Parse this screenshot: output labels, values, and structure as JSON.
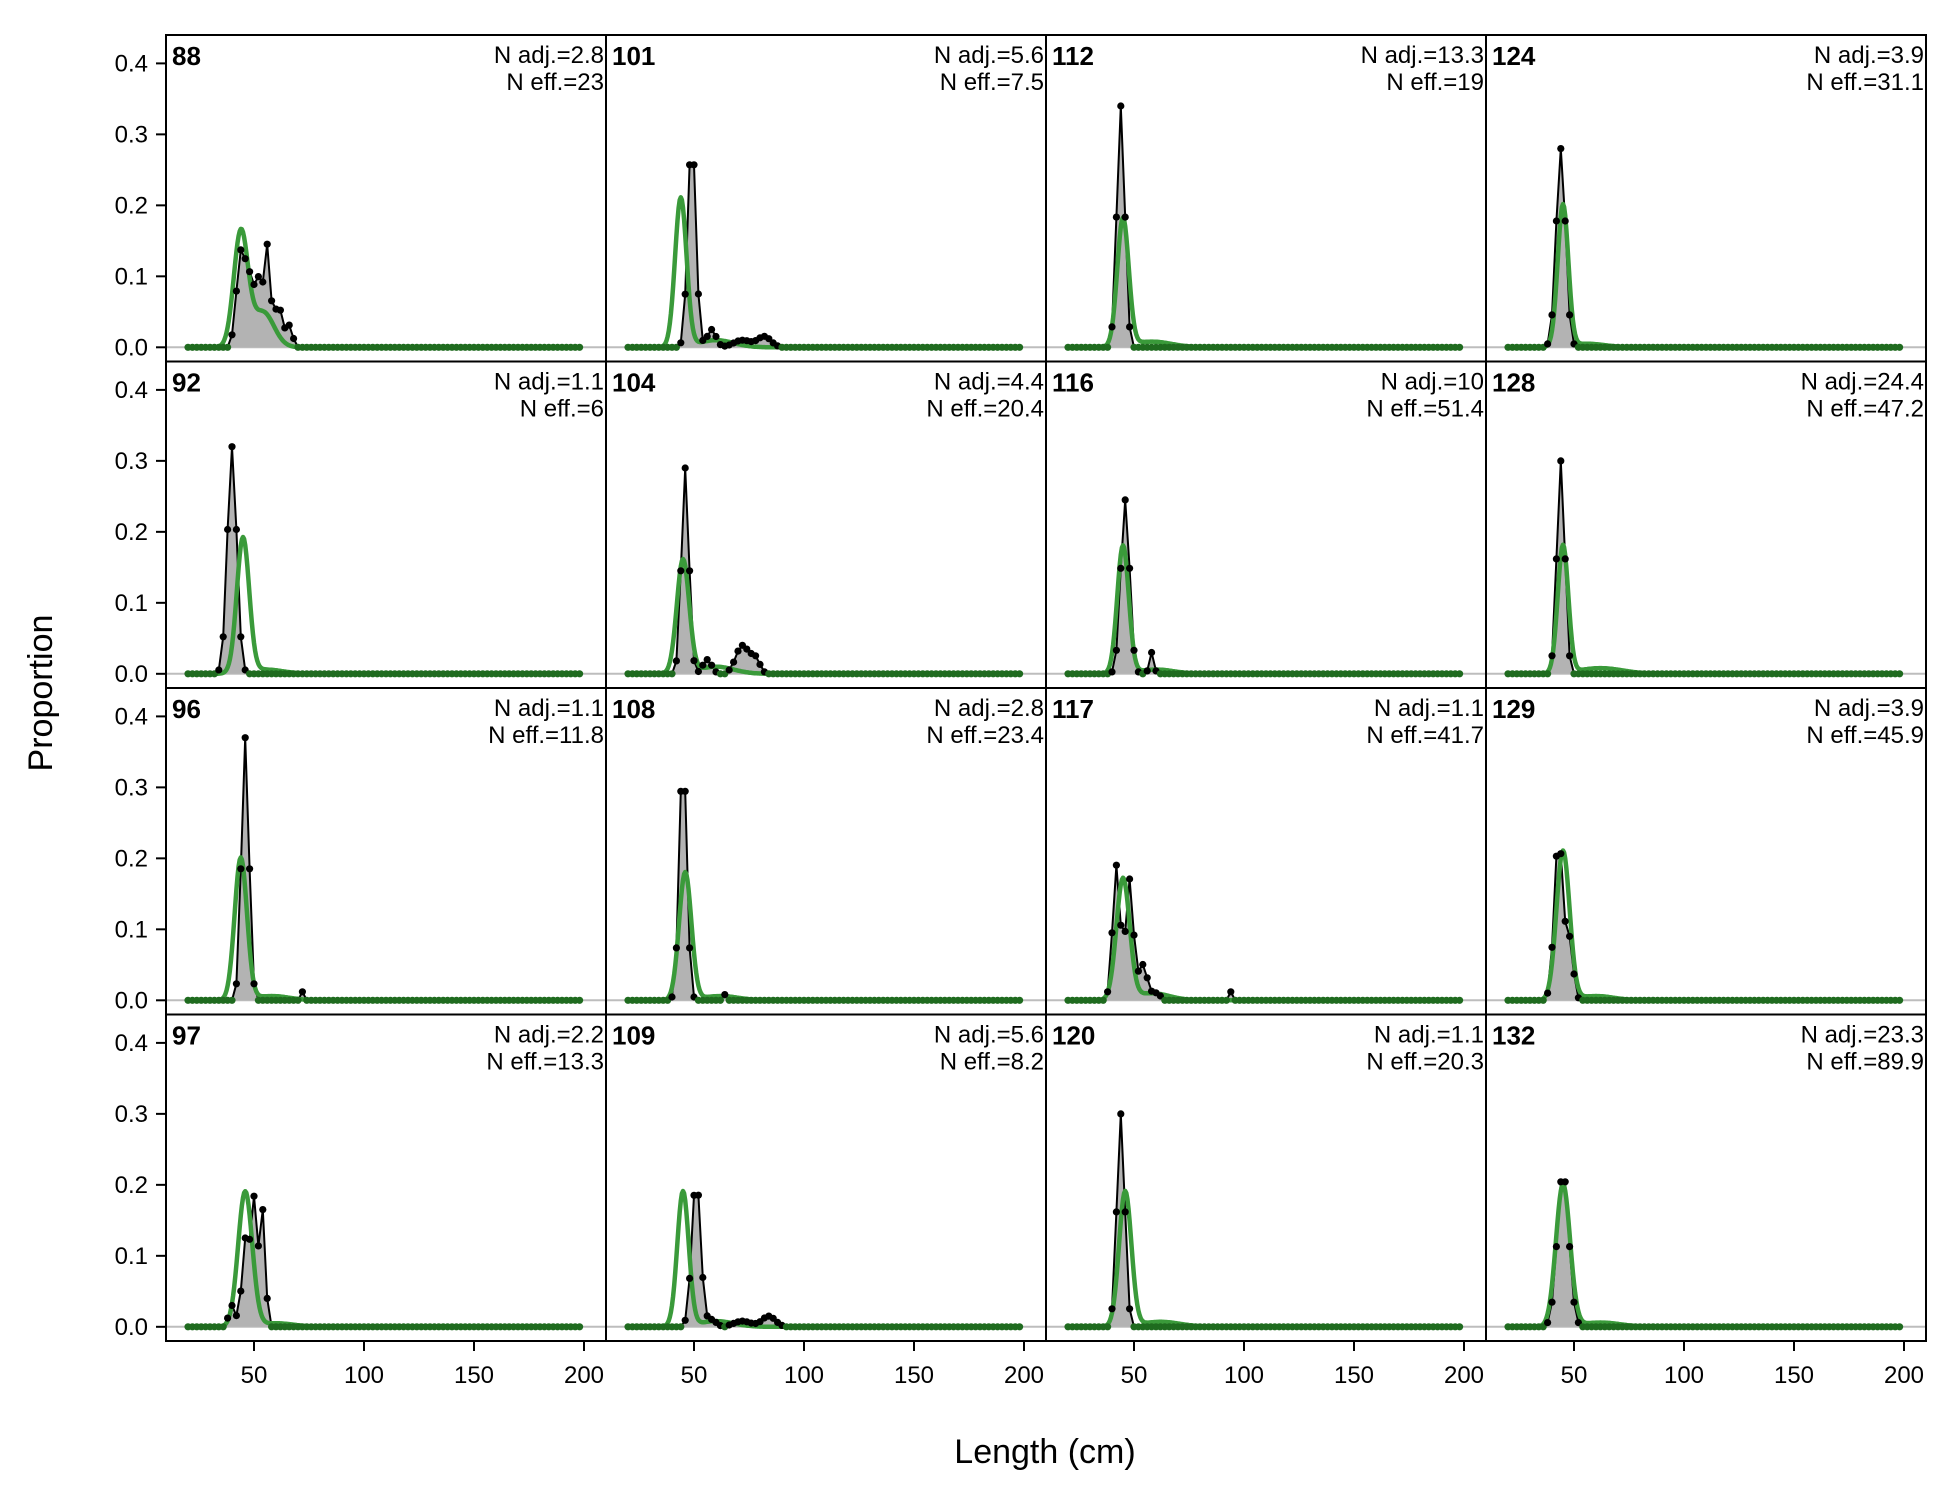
{
  "chart_data": {
    "type": "line",
    "layout": "4x4 panel grid, columns filled top-to-bottom",
    "xlabel": "Length (cm)",
    "ylabel": "Proportion",
    "xlim": [
      10,
      210
    ],
    "ylim": [
      -0.02,
      0.44
    ],
    "x_ticks": [
      50,
      100,
      150,
      200
    ],
    "x_tick_labels": [
      "50",
      "100",
      "150",
      "200"
    ],
    "y_ticks": [
      0.0,
      0.1,
      0.2,
      0.3,
      0.4
    ],
    "y_tick_labels": [
      "0.0",
      "0.1",
      "0.2",
      "0.3",
      "0.4"
    ],
    "grid": false,
    "legend": "none",
    "colors": {
      "observed_line": "#000000",
      "observed_fill": "#b3b3b3",
      "expected_line": "#3a9a3a",
      "zero_line": "#bdbdbd",
      "expected_points": "#1f6b1f"
    },
    "series_styles": {
      "observed": "black line with points over grey fill",
      "expected": "green line"
    },
    "bins": [
      20,
      22,
      24,
      26,
      28,
      30,
      32,
      34,
      36,
      38,
      40,
      42,
      44,
      46,
      48,
      50,
      52,
      54,
      56,
      58,
      60,
      62,
      64,
      66,
      68,
      70,
      72,
      74,
      76,
      78,
      80,
      82,
      84,
      86,
      88,
      90,
      92,
      94,
      96,
      98,
      100,
      102,
      104,
      106,
      108,
      110,
      112,
      114,
      116,
      118,
      120,
      122,
      124,
      126,
      128,
      130,
      132,
      134,
      136,
      138,
      140,
      142,
      144,
      146,
      148,
      150,
      152,
      154,
      156,
      158,
      160,
      162,
      164,
      166,
      168,
      170,
      172,
      174,
      176,
      178,
      180,
      182,
      184,
      186,
      188,
      190,
      192,
      194,
      196,
      198
    ],
    "panels": [
      {
        "id": "88",
        "n_adj": "N adj.=2.8",
        "n_eff": "N eff.=23",
        "obs_peaks": [
          [
            44,
            0.13,
            2
          ],
          [
            48,
            0.085,
            1.8
          ],
          [
            52,
            0.09,
            1.6
          ],
          [
            56,
            0.14,
            1.4
          ],
          [
            61,
            0.06,
            1.8
          ],
          [
            66,
            0.03,
            1.5
          ]
        ],
        "exp_peaks": [
          [
            44,
            0.16,
            3.2
          ],
          [
            54,
            0.05,
            5
          ]
        ]
      },
      {
        "id": "92",
        "n_adj": "N adj.=1.1",
        "n_eff": "N eff.=6",
        "obs_peaks": [
          [
            40,
            0.32,
            2.1
          ]
        ],
        "exp_peaks": [
          [
            45,
            0.19,
            2.8
          ],
          [
            55,
            0.006,
            8
          ]
        ]
      },
      {
        "id": "96",
        "n_adj": "N adj.=1.1",
        "n_eff": "N eff.=11.8",
        "obs_peaks": [
          [
            46,
            0.37,
            1.7
          ],
          [
            72,
            0.012,
            0.8
          ]
        ],
        "exp_peaks": [
          [
            44,
            0.2,
            2.8
          ],
          [
            58,
            0.006,
            8
          ]
        ]
      },
      {
        "id": "97",
        "n_adj": "N adj.=2.2",
        "n_eff": "N eff.=13.3",
        "obs_peaks": [
          [
            46,
            0.12,
            1.5
          ],
          [
            50,
            0.18,
            1.5
          ],
          [
            54,
            0.16,
            1.2
          ],
          [
            40,
            0.03,
            1.5
          ]
        ],
        "exp_peaks": [
          [
            46,
            0.19,
            3.2
          ],
          [
            60,
            0.005,
            8
          ]
        ]
      },
      {
        "id": "101",
        "n_adj": "N adj.=5.6",
        "n_eff": "N eff.=7.5",
        "obs_peaks": [
          [
            49,
            0.3,
            1.8
          ],
          [
            58,
            0.025,
            2
          ],
          [
            72,
            0.01,
            4
          ],
          [
            82,
            0.015,
            3
          ]
        ],
        "exp_peaks": [
          [
            44,
            0.21,
            2.6
          ],
          [
            60,
            0.01,
            8
          ]
        ]
      },
      {
        "id": "104",
        "n_adj": "N adj.=4.4",
        "n_eff": "N eff.=20.4",
        "obs_peaks": [
          [
            46,
            0.29,
            1.7
          ],
          [
            56,
            0.02,
            2
          ],
          [
            72,
            0.04,
            3
          ],
          [
            78,
            0.02,
            2
          ]
        ],
        "exp_peaks": [
          [
            45,
            0.16,
            2.8
          ],
          [
            60,
            0.01,
            8
          ]
        ]
      },
      {
        "id": "108",
        "n_adj": "N adj.=2.8",
        "n_eff": "N eff.=23.4",
        "obs_peaks": [
          [
            45,
            0.35,
            1.7
          ],
          [
            64,
            0.008,
            1
          ]
        ],
        "exp_peaks": [
          [
            46,
            0.18,
            2.8
          ],
          [
            62,
            0.006,
            8
          ]
        ]
      },
      {
        "id": "109",
        "n_adj": "N adj.=5.6",
        "n_eff": "N eff.=8.2",
        "obs_peaks": [
          [
            51,
            0.21,
            2
          ],
          [
            58,
            0.01,
            2
          ],
          [
            72,
            0.008,
            4
          ],
          [
            84,
            0.015,
            3
          ]
        ],
        "exp_peaks": [
          [
            45,
            0.19,
            2.6
          ],
          [
            60,
            0.008,
            8
          ]
        ]
      },
      {
        "id": "112",
        "n_adj": "N adj.=13.3",
        "n_eff": "N eff.=19",
        "obs_peaks": [
          [
            44,
            0.34,
            1.8
          ]
        ],
        "exp_peaks": [
          [
            45,
            0.18,
            2.6
          ],
          [
            58,
            0.008,
            9
          ]
        ]
      },
      {
        "id": "116",
        "n_adj": "N adj.=10",
        "n_eff": "N eff.=51.4",
        "obs_peaks": [
          [
            46,
            0.245,
            2
          ],
          [
            58,
            0.03,
            1
          ]
        ],
        "exp_peaks": [
          [
            45,
            0.18,
            2.6
          ],
          [
            60,
            0.006,
            8
          ]
        ]
      },
      {
        "id": "117",
        "n_adj": "N adj.=1.1",
        "n_eff": "N eff.=41.7",
        "obs_peaks": [
          [
            42,
            0.19,
            1.7
          ],
          [
            48,
            0.17,
            1.7
          ],
          [
            54,
            0.05,
            2
          ],
          [
            60,
            0.01,
            2
          ],
          [
            94,
            0.012,
            0.8
          ]
        ],
        "exp_peaks": [
          [
            45,
            0.17,
            3
          ],
          [
            58,
            0.01,
            8
          ]
        ]
      },
      {
        "id": "120",
        "n_adj": "N adj.=1.1",
        "n_eff": "N eff.=20.3",
        "obs_peaks": [
          [
            44,
            0.3,
            1.8
          ]
        ],
        "exp_peaks": [
          [
            46,
            0.19,
            2.8
          ],
          [
            62,
            0.007,
            9
          ]
        ]
      },
      {
        "id": "124",
        "n_adj": "N adj.=3.9",
        "n_eff": "N eff.=31.1",
        "obs_peaks": [
          [
            44,
            0.28,
            2.1
          ]
        ],
        "exp_peaks": [
          [
            45,
            0.2,
            2.4
          ],
          [
            56,
            0.005,
            8
          ]
        ]
      },
      {
        "id": "128",
        "n_adj": "N adj.=24.4",
        "n_eff": "N eff.=47.2",
        "obs_peaks": [
          [
            44,
            0.3,
            1.8
          ]
        ],
        "exp_peaks": [
          [
            45,
            0.18,
            2.4
          ],
          [
            62,
            0.008,
            10
          ]
        ]
      },
      {
        "id": "129",
        "n_adj": "N adj.=3.9",
        "n_eff": "N eff.=45.9",
        "obs_peaks": [
          [
            43,
            0.23,
            2
          ],
          [
            48,
            0.08,
            1.6
          ]
        ],
        "exp_peaks": [
          [
            45,
            0.21,
            3
          ],
          [
            60,
            0.006,
            8
          ]
        ]
      },
      {
        "id": "132",
        "n_adj": "N adj.=23.3",
        "n_eff": "N eff.=89.9",
        "obs_peaks": [
          [
            45,
            0.22,
            2.6
          ]
        ],
        "exp_peaks": [
          [
            45,
            0.2,
            3.2
          ],
          [
            62,
            0.006,
            9
          ]
        ]
      }
    ]
  }
}
